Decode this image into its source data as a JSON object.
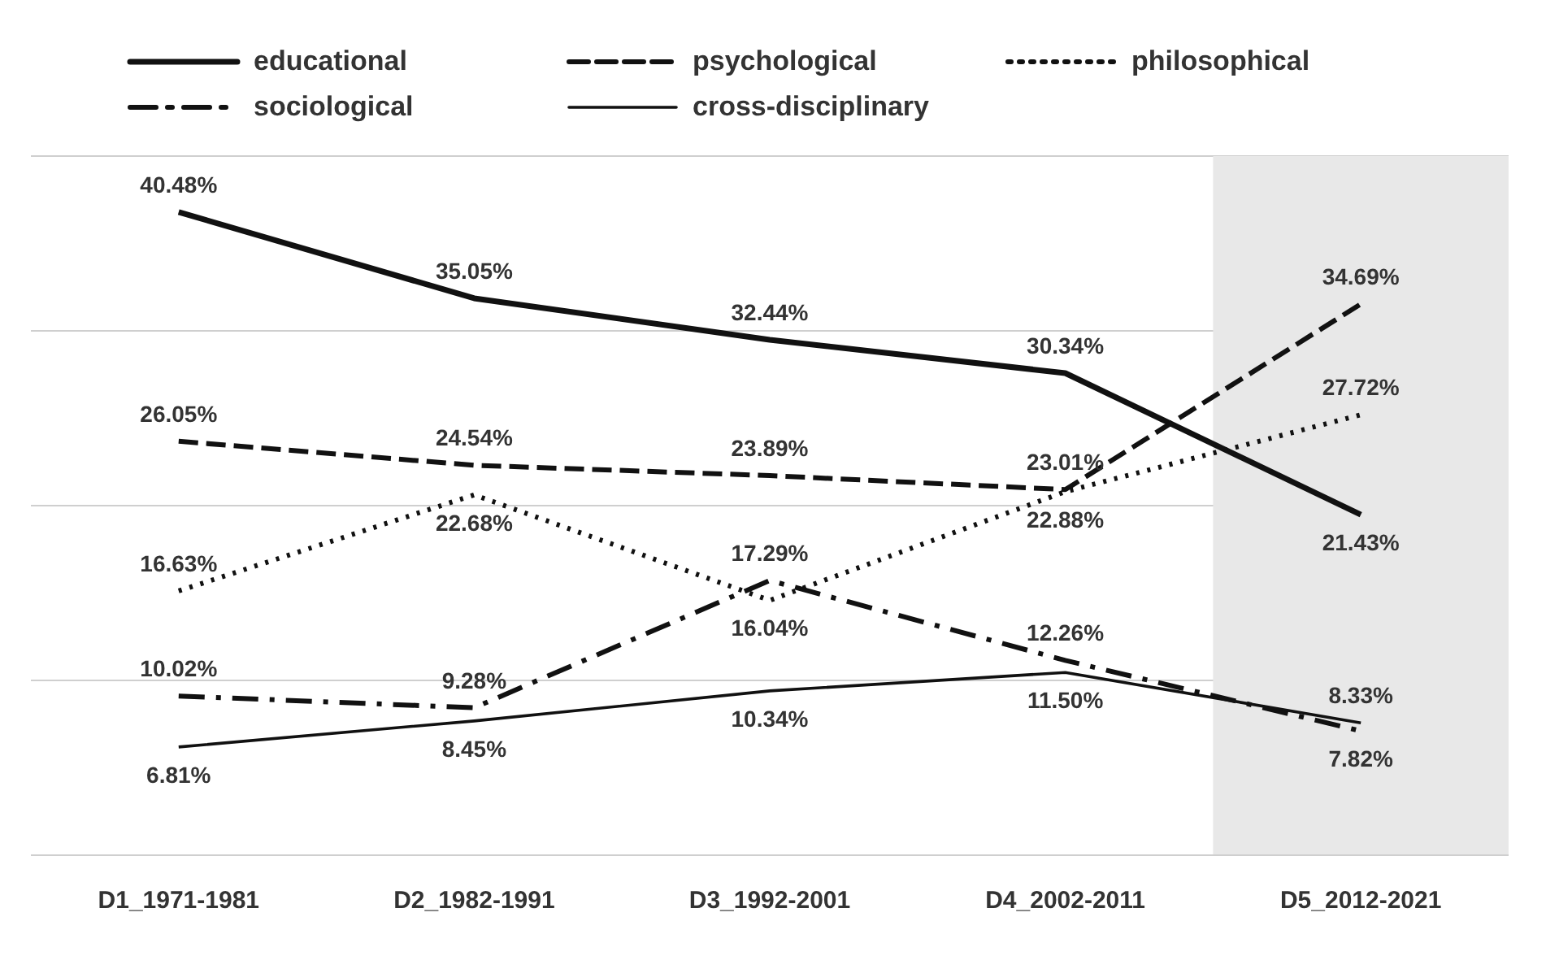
{
  "chart_data": {
    "type": "line",
    "categories": [
      "D1_1971-1981",
      "D2_1982-1991",
      "D3_1992-2001",
      "D4_2002-2011",
      "D5_2012-2021"
    ],
    "series": [
      {
        "name": "educational",
        "color": "#111111",
        "line_style": "solid",
        "values": [
          40.48,
          35.05,
          32.44,
          30.34,
          21.43
        ],
        "value_labels": [
          "40.48%",
          "35.05%",
          "32.44%",
          "30.34%",
          "21.43%"
        ]
      },
      {
        "name": "psychological",
        "color": "#111111",
        "line_style": "dashed",
        "values": [
          26.05,
          24.54,
          23.89,
          23.01,
          34.69
        ],
        "value_labels": [
          "26.05%",
          "24.54%",
          "23.89%",
          "23.01%",
          "34.69%"
        ]
      },
      {
        "name": "philosophical",
        "color": "#111111",
        "line_style": "dotted",
        "values": [
          16.63,
          22.68,
          16.04,
          22.88,
          27.72
        ],
        "value_labels": [
          "16.63%",
          "22.68%",
          "16.04%",
          "22.88%",
          "27.72%"
        ]
      },
      {
        "name": "sociological",
        "color": "#111111",
        "line_style": "dashdot",
        "values": [
          10.02,
          9.28,
          17.29,
          12.26,
          7.82
        ],
        "value_labels": [
          "10.02%",
          "9.28%",
          "17.29%",
          "12.26%",
          "7.82%"
        ]
      },
      {
        "name": "cross-disciplinary",
        "color": "#111111",
        "line_style": "solid",
        "values": [
          6.81,
          8.45,
          10.34,
          11.5,
          8.33
        ],
        "value_labels": [
          "6.81%",
          "8.45%",
          "10.34%",
          "11.50%",
          "8.33%"
        ]
      }
    ],
    "tick_labels": "x",
    "grid": "y",
    "legend": "top",
    "bands": [
      {
        "axis": "x",
        "from": "D5_2012-2021",
        "to": "D5_2012-2021",
        "color": "#e8e8e8"
      }
    ]
  }
}
